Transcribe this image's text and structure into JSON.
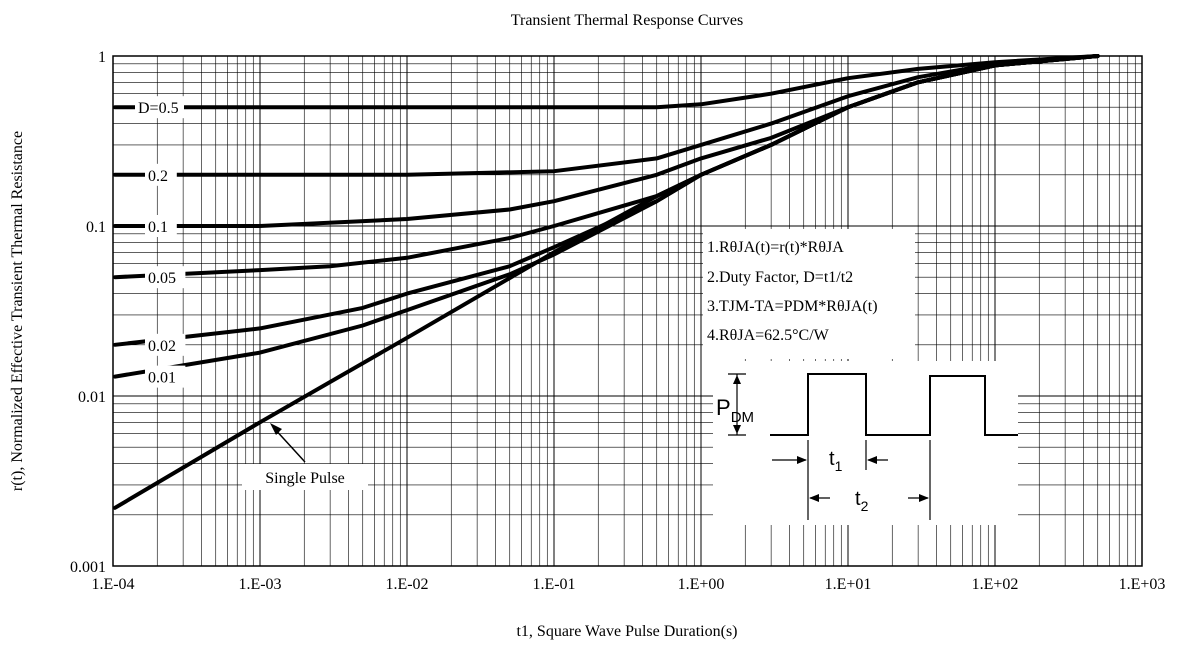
{
  "chart_data": {
    "type": "line",
    "title": "Transient Thermal Response Curves",
    "xlabel": "t1, Square Wave Pulse Duration(s)",
    "ylabel": "r(t), Normalized Effective Transient Thermal Resistance",
    "x_scale": "log",
    "y_scale": "log",
    "xlim": [
      0.0001,
      1000
    ],
    "ylim": [
      0.001,
      1
    ],
    "grid": true,
    "x_ticks": [
      {
        "value": 0.0001,
        "label": "1.E-04"
      },
      {
        "value": 0.001,
        "label": "1.E-03"
      },
      {
        "value": 0.01,
        "label": "1.E-02"
      },
      {
        "value": 0.1,
        "label": "1.E-01"
      },
      {
        "value": 1,
        "label": "1.E+00"
      },
      {
        "value": 10,
        "label": "1.E+01"
      },
      {
        "value": 100,
        "label": "1.E+02"
      },
      {
        "value": 1000,
        "label": "1.E+03"
      }
    ],
    "y_ticks": [
      {
        "value": 0.001,
        "label": "0.001"
      },
      {
        "value": 0.01,
        "label": "0.01"
      },
      {
        "value": 0.1,
        "label": "0.1"
      },
      {
        "value": 1,
        "label": "1"
      }
    ],
    "series": [
      {
        "name": "D=0.5",
        "x": [
          0.0001,
          0.001,
          0.01,
          0.1,
          0.5,
          1,
          3,
          10,
          30,
          100,
          500
        ],
        "y": [
          0.5,
          0.5,
          0.5,
          0.5,
          0.5,
          0.52,
          0.6,
          0.74,
          0.84,
          0.92,
          1.0
        ]
      },
      {
        "name": "0.2",
        "x": [
          0.0001,
          0.001,
          0.01,
          0.1,
          0.5,
          1,
          3,
          10,
          30,
          100,
          500
        ],
        "y": [
          0.2,
          0.2,
          0.2,
          0.21,
          0.25,
          0.3,
          0.4,
          0.58,
          0.75,
          0.9,
          1.0
        ]
      },
      {
        "name": "0.1",
        "x": [
          0.0001,
          0.001,
          0.01,
          0.05,
          0.1,
          0.5,
          1,
          3,
          10,
          30,
          100,
          500
        ],
        "y": [
          0.1,
          0.1,
          0.11,
          0.125,
          0.14,
          0.2,
          0.25,
          0.33,
          0.5,
          0.7,
          0.88,
          1.0
        ]
      },
      {
        "name": "0.05",
        "x": [
          0.0001,
          0.001,
          0.003,
          0.01,
          0.05,
          0.1,
          0.5,
          1,
          3,
          10,
          30,
          100,
          500
        ],
        "y": [
          0.05,
          0.055,
          0.058,
          0.065,
          0.085,
          0.1,
          0.15,
          0.2,
          0.3,
          0.5,
          0.7,
          0.88,
          1.0
        ]
      },
      {
        "name": "0.02",
        "x": [
          0.0001,
          0.001,
          0.005,
          0.01,
          0.05,
          0.1,
          0.5,
          1,
          3,
          10,
          30,
          100,
          500
        ],
        "y": [
          0.02,
          0.025,
          0.033,
          0.04,
          0.058,
          0.075,
          0.14,
          0.2,
          0.3,
          0.5,
          0.7,
          0.88,
          1.0
        ]
      },
      {
        "name": "0.01",
        "x": [
          0.0001,
          0.001,
          0.005,
          0.01,
          0.05,
          0.1,
          0.5,
          1,
          3,
          10,
          30,
          100,
          500
        ],
        "y": [
          0.013,
          0.018,
          0.026,
          0.032,
          0.052,
          0.068,
          0.14,
          0.2,
          0.3,
          0.5,
          0.7,
          0.88,
          1.0
        ]
      },
      {
        "name": "Single Pulse",
        "x": [
          0.0001,
          0.001,
          0.01,
          0.1,
          0.5,
          1,
          3,
          10,
          30,
          100,
          500
        ],
        "y": [
          0.0022,
          0.007,
          0.022,
          0.07,
          0.15,
          0.2,
          0.3,
          0.5,
          0.7,
          0.88,
          1.0
        ]
      }
    ],
    "annotations": {
      "notes": [
        "1.RθJA(t)=r(t)*RθJA",
        "2.Duty Factor, D=t1/t2",
        "3.TJM-TA=PDM*RθJA(t)",
        "4.RθJA=62.5°C/W"
      ],
      "pulse_diagram": {
        "pdm_label": "P",
        "pdm_sub": "DM",
        "t1_label": "t",
        "t1_sub": "1",
        "t2_label": "t",
        "t2_sub": "2"
      }
    }
  }
}
